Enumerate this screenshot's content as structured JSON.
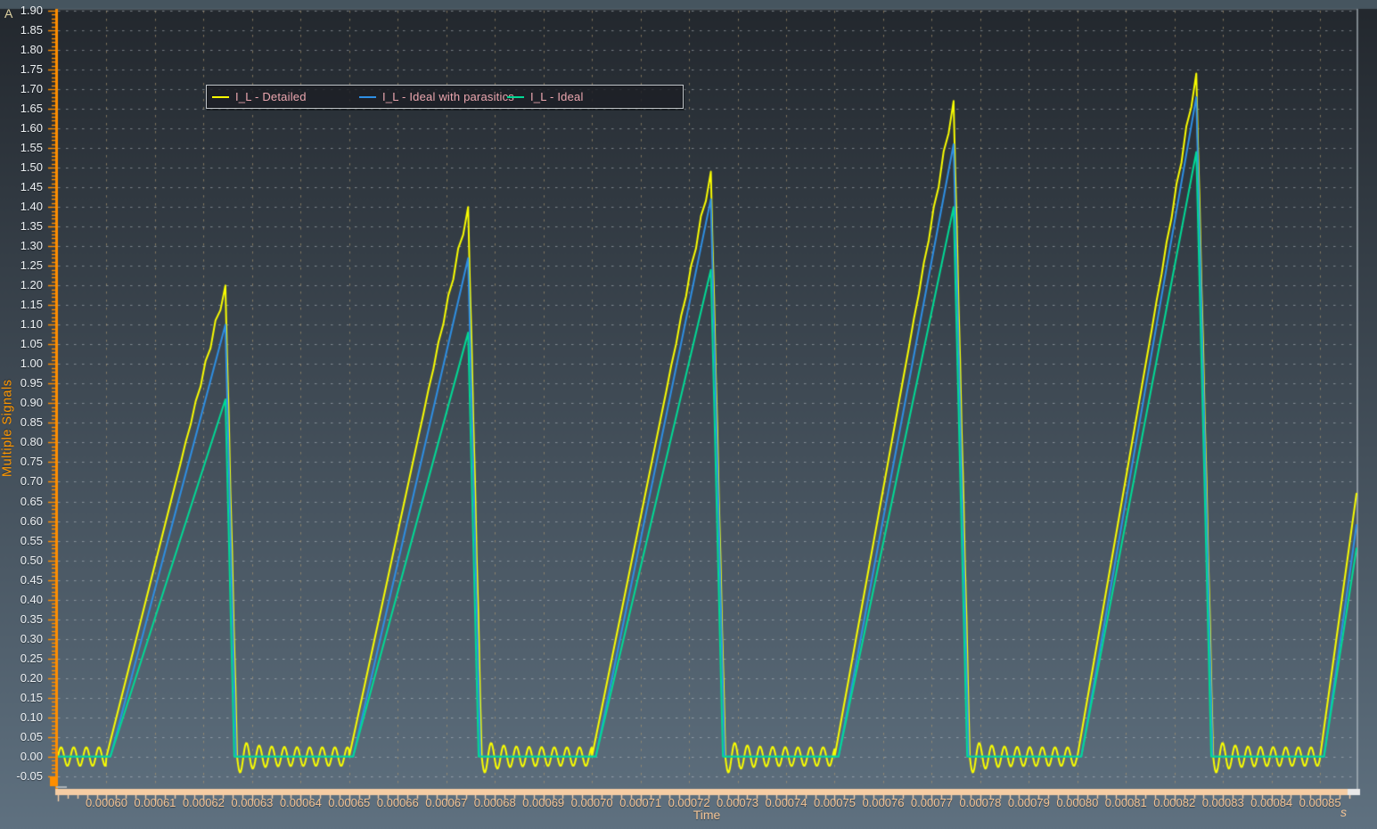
{
  "window": {
    "top_strip_color": "#46555f"
  },
  "style": {
    "bg_top": "#23282e",
    "bg_bottom": "#5f7180",
    "grid_h_color": "rgba(200,207,213,0.5)",
    "grid_v_color": "rgba(173,152,112,0.65)",
    "y_axis_color": "#ff8e00",
    "x_axis_color": "#f6cda4",
    "x_axis_endcap_color": "#e9e9e9",
    "x_label_color": "#f3c394",
    "y_label_color": "#eef2f5",
    "y_unit_color": "#ded2a2",
    "y_title_color": "#ff9800",
    "plot_border_color": "rgba(185,195,203,0.8)",
    "legend_bg": "rgba(28,31,36,0.82)",
    "legend_text_color": "#eba6ae"
  },
  "chart_data": {
    "type": "line",
    "title": "",
    "xlabel": "Time",
    "x_unit": "s",
    "ylabel": "Multiple Signals",
    "y_unit": "A",
    "xlim": [
      0.00059,
      0.0008575
    ],
    "ylim": [
      -0.08,
      1.9
    ],
    "grid": true,
    "legend_position": "top-left-inside",
    "x_tick_step_s": 1e-05,
    "x_minor_tick_step_s": 2e-06,
    "y_tick_step_A": 0.05,
    "y_minor_tick_step_A": 0.01,
    "x_tick_labels": [
      "0.00060",
      "0.00061",
      "0.00062",
      "0.00063",
      "0.00064",
      "0.00065",
      "0.00066",
      "0.00067",
      "0.00068",
      "0.00069",
      "0.00070",
      "0.00071",
      "0.00072",
      "0.00073",
      "0.00074",
      "0.00075",
      "0.00076",
      "0.00077",
      "0.00078",
      "0.00079",
      "0.00080",
      "0.00081",
      "0.00082",
      "0.00083",
      "0.00084",
      "0.00085"
    ],
    "y_tick_labels": [
      "-0.05",
      "0.00",
      "0.05",
      "0.10",
      "0.15",
      "0.20",
      "0.25",
      "0.30",
      "0.35",
      "0.40",
      "0.45",
      "0.50",
      "0.55",
      "0.60",
      "0.65",
      "0.70",
      "0.75",
      "0.80",
      "0.85",
      "0.90",
      "0.95",
      "1.00",
      "1.05",
      "1.10",
      "1.15",
      "1.20",
      "1.25",
      "1.30",
      "1.35",
      "1.40",
      "1.45",
      "1.50",
      "1.55",
      "1.60",
      "1.65",
      "1.70",
      "1.75",
      "1.80",
      "1.85",
      "1.90"
    ],
    "timing": {
      "period_s": 5e-05,
      "first_rise_start_s": 0.0006,
      "rise_time_s": 2.45e-05,
      "fall_slope_A_per_s": 500000,
      "tail_rise_start_s": 0.00085,
      "peak_times_s": [
        0.0006245,
        0.0006745,
        0.0007245,
        0.0007745,
        0.0008245
      ]
    },
    "series": [
      {
        "name": "I_L - Detailed",
        "color": "#f9fd00",
        "peak_values_A": [
          1.2,
          1.4,
          1.49,
          1.67,
          1.74
        ],
        "value_at_right_edge_A": 0.67,
        "rise_delay_s": 0,
        "switching_ripple_A": 0.014,
        "off_state_ringing": {
          "period_s": 2.6e-06,
          "amplitude_A": 0.024,
          "first_undershoot_A": -0.045
        }
      },
      {
        "name": "I_L - Ideal with parasitics",
        "color": "#2e8fe4",
        "peak_values_A": [
          1.1,
          1.27,
          1.42,
          1.56,
          1.68
        ],
        "value_at_right_edge_A": 0.59,
        "rise_delay_s": 8e-07
      },
      {
        "name": "I_L - Ideal",
        "color": "#01da95",
        "peak_values_A": [
          0.91,
          1.08,
          1.24,
          1.4,
          1.54
        ],
        "value_at_right_edge_A": 0.53,
        "rise_delay_s": 8e-07
      }
    ]
  }
}
